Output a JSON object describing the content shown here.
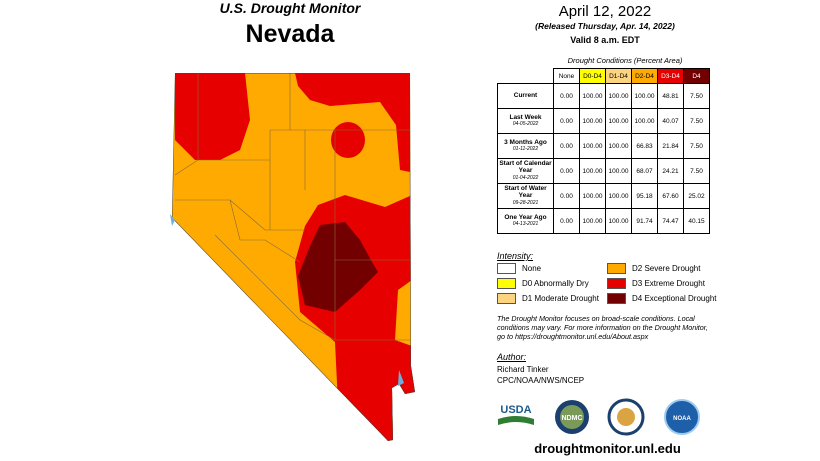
{
  "header": {
    "title": "U.S. Drought Monitor",
    "state": "Nevada",
    "date": "April 12, 2022",
    "released": "(Released Thursday, Apr. 14, 2022)",
    "valid": "Valid 8 a.m. EDT"
  },
  "table": {
    "caption": "Drought Conditions (Percent Area)",
    "columns": [
      {
        "label": "None",
        "color": "#ffffff",
        "text": "#000000"
      },
      {
        "label": "D0-D4",
        "color": "#ffff00",
        "text": "#000000"
      },
      {
        "label": "D1-D4",
        "color": "#fcd37f",
        "text": "#000000"
      },
      {
        "label": "D2-D4",
        "color": "#ffaa00",
        "text": "#000000"
      },
      {
        "label": "D3-D4",
        "color": "#e60000",
        "text": "#ffffff"
      },
      {
        "label": "D4",
        "color": "#730000",
        "text": "#ffffff"
      }
    ],
    "rows": [
      {
        "label": "Current",
        "values": [
          "0.00",
          "100.00",
          "100.00",
          "100.00",
          "48.81",
          "7.50"
        ]
      },
      {
        "label": "Last Week",
        "date": "04-05-2022",
        "values": [
          "0.00",
          "100.00",
          "100.00",
          "100.00",
          "40.07",
          "7.50"
        ]
      },
      {
        "label": "3 Months Ago",
        "date": "01-11-2022",
        "values": [
          "0.00",
          "100.00",
          "100.00",
          "66.83",
          "21.84",
          "7.50"
        ]
      },
      {
        "label": "Start of Calendar Year",
        "date": "01-04-2022",
        "values": [
          "0.00",
          "100.00",
          "100.00",
          "68.07",
          "24.21",
          "7.50"
        ]
      },
      {
        "label": "Start of Water Year",
        "date": "09-28-2021",
        "values": [
          "0.00",
          "100.00",
          "100.00",
          "95.18",
          "67.60",
          "25.02"
        ]
      },
      {
        "label": "One Year Ago",
        "date": "04-13-2021",
        "values": [
          "0.00",
          "100.00",
          "100.00",
          "91.74",
          "74.47",
          "40.15"
        ]
      }
    ]
  },
  "legend": {
    "title": "Intensity:",
    "items": [
      {
        "label": "None",
        "color": "#ffffff"
      },
      {
        "label": "D0 Abnormally Dry",
        "color": "#ffff00"
      },
      {
        "label": "D1 Moderate Drought",
        "color": "#fcd37f"
      },
      {
        "label": "D2 Severe Drought",
        "color": "#ffaa00"
      },
      {
        "label": "D3 Extreme Drought",
        "color": "#e60000"
      },
      {
        "label": "D4 Exceptional Drought",
        "color": "#730000"
      }
    ]
  },
  "notes": "The Drought Monitor focuses on broad-scale conditions. Local conditions may vary. For more information on the Drought Monitor, go to https://droughtmonitor.unl.edu/About.aspx",
  "author": {
    "title": "Author:",
    "lines": [
      "Richard Tinker",
      "CPC/NOAA/NWS/NCEP"
    ]
  },
  "logos": [
    "USDA",
    "NDMC",
    "NOAA"
  ],
  "footer": "droughtmonitor.unl.edu"
}
